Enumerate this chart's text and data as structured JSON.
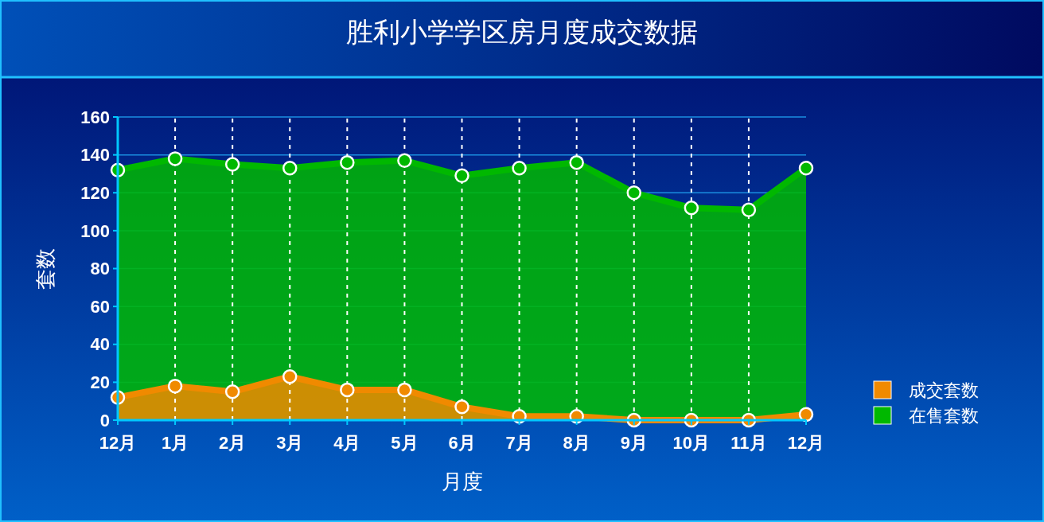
{
  "chart_data": {
    "type": "area",
    "title": "胜利小学学区房月度成交数据",
    "xlabel": "月度",
    "ylabel": "套数",
    "categories": [
      "12月",
      "1月",
      "2月",
      "3月",
      "4月",
      "5月",
      "6月",
      "7月",
      "8月",
      "9月",
      "10月",
      "11月",
      "12月"
    ],
    "series": [
      {
        "name": "成交套数",
        "color": "#f08a00",
        "values": [
          12,
          18,
          15,
          23,
          16,
          16,
          7,
          2,
          2,
          0,
          0,
          0,
          3
        ]
      },
      {
        "name": "在售套数",
        "color": "#00b800",
        "values": [
          132,
          138,
          135,
          133,
          136,
          137,
          129,
          133,
          136,
          120,
          112,
          111,
          133
        ]
      }
    ],
    "ylim": [
      0,
      160
    ],
    "yticks": [
      0,
      20,
      40,
      60,
      80,
      100,
      120,
      140,
      160
    ],
    "grid": true,
    "legend": "right",
    "marker": "circle",
    "line_style": "solid"
  }
}
